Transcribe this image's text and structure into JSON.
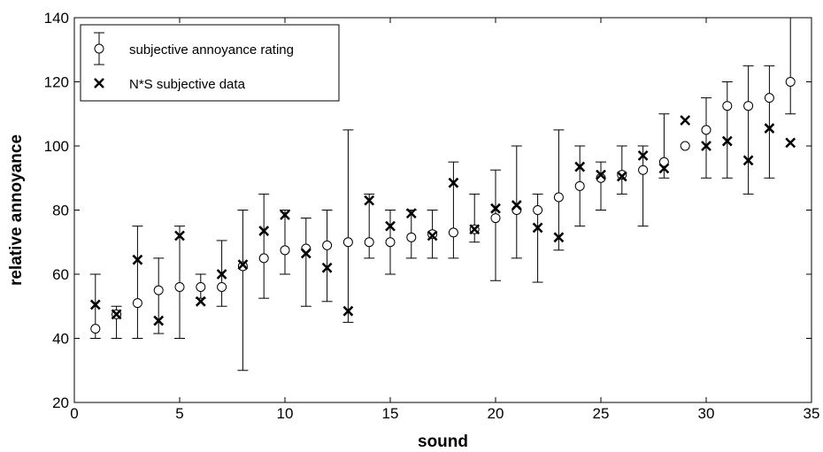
{
  "chart_data": {
    "type": "scatter",
    "title": "",
    "xlabel": "sound",
    "ylabel": "relative annoyance",
    "xlim": [
      0,
      35
    ],
    "ylim": [
      20,
      140
    ],
    "xticks": [
      0,
      5,
      10,
      15,
      20,
      25,
      30,
      35
    ],
    "yticks": [
      20,
      40,
      60,
      80,
      100,
      120,
      140
    ],
    "grid": false,
    "legend_position": "top-left",
    "series": [
      {
        "name": "subjective annoyance rating",
        "marker": "circle",
        "error_bars": true,
        "x": [
          1,
          2,
          3,
          4,
          5,
          6,
          7,
          8,
          9,
          10,
          11,
          12,
          13,
          14,
          15,
          16,
          17,
          18,
          19,
          20,
          21,
          22,
          23,
          24,
          25,
          26,
          27,
          28,
          29,
          30,
          31,
          32,
          33,
          34
        ],
        "y": [
          43,
          47.5,
          51,
          55,
          56,
          56,
          56,
          62.5,
          65,
          67.5,
          68,
          69,
          70,
          70,
          70,
          71.5,
          72.5,
          73,
          74,
          77.5,
          80,
          80,
          84,
          87.5,
          90,
          91,
          92.5,
          95,
          100,
          105,
          112.5,
          112.5,
          115,
          120
        ],
        "lower": [
          40,
          40,
          40,
          41.5,
          40,
          52.5,
          50,
          30,
          52.5,
          60,
          50,
          51.5,
          45,
          65,
          60,
          65,
          65,
          65,
          70,
          58,
          65,
          57.5,
          67.5,
          75,
          80,
          85,
          75,
          90,
          100,
          90,
          90,
          85,
          90,
          110
        ],
        "upper": [
          60,
          50,
          75,
          65,
          75,
          60,
          70.5,
          80,
          85,
          80,
          77.5,
          80,
          105,
          85,
          80,
          80,
          80,
          95,
          85,
          92.5,
          100,
          85,
          105,
          100,
          95,
          100,
          100,
          110,
          100,
          115,
          120,
          125,
          125,
          140
        ]
      },
      {
        "name": "N*S subjective data",
        "marker": "x",
        "error_bars": false,
        "x": [
          1,
          2,
          3,
          4,
          5,
          6,
          7,
          8,
          9,
          10,
          11,
          12,
          13,
          14,
          15,
          16,
          17,
          18,
          19,
          20,
          21,
          22,
          23,
          24,
          25,
          26,
          27,
          28,
          29,
          30,
          31,
          32,
          33,
          34
        ],
        "y": [
          50.5,
          47.5,
          64.5,
          45.5,
          72,
          51.5,
          60,
          63,
          73.5,
          78.5,
          66.5,
          62,
          48.5,
          83,
          75,
          79,
          72,
          88.5,
          74,
          80.5,
          81.5,
          74.5,
          71.5,
          93.5,
          91,
          90.5,
          97,
          93,
          108,
          100,
          101.5,
          95.5,
          105.5,
          101
        ]
      }
    ]
  }
}
